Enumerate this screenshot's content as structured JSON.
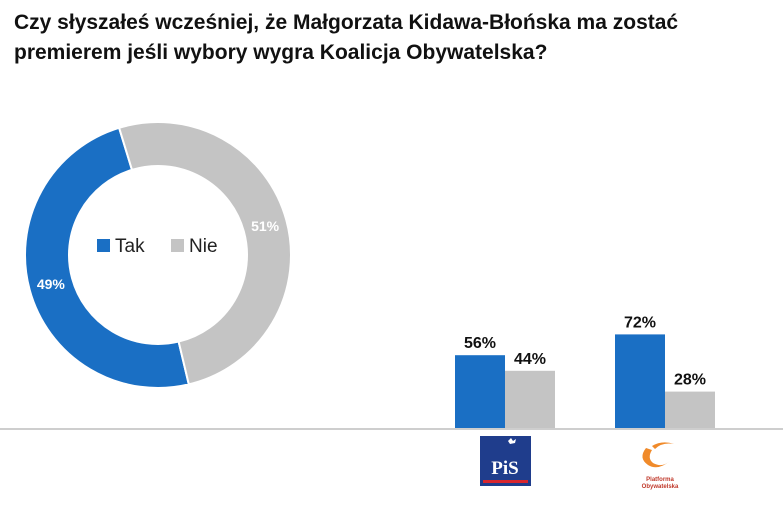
{
  "title_line1": "Czy słyszałeś wcześniej, że Małgorzata Kidawa-Błońska ma zostać",
  "title_line2": "premierem jeśli wybory wygra Koalicja Obywatelska?",
  "chart_data": [
    {
      "type": "pie",
      "donut": true,
      "labels": [
        "Tak",
        "Nie"
      ],
      "values": [
        49,
        51
      ],
      "colors": [
        "#1a6fc4",
        "#c4c4c4"
      ],
      "data_labels": [
        "49%",
        "51%"
      ],
      "legend": [
        "Tak",
        "Nie"
      ],
      "legend_position": "center"
    },
    {
      "type": "bar",
      "categories": [
        "PiS",
        "Platforma Obywatelska"
      ],
      "series": [
        {
          "values": [
            56,
            72
          ],
          "labels": [
            "56%",
            "72%"
          ],
          "color": "#1a6fc4"
        },
        {
          "values": [
            44,
            28
          ],
          "labels": [
            "44%",
            "28%"
          ],
          "color": "#c4c4c4"
        }
      ],
      "ylim": [
        0,
        100
      ]
    }
  ],
  "logos": {
    "pis_text": "PiS",
    "po_line1": "Platforma",
    "po_line2": "Obywatelska"
  }
}
